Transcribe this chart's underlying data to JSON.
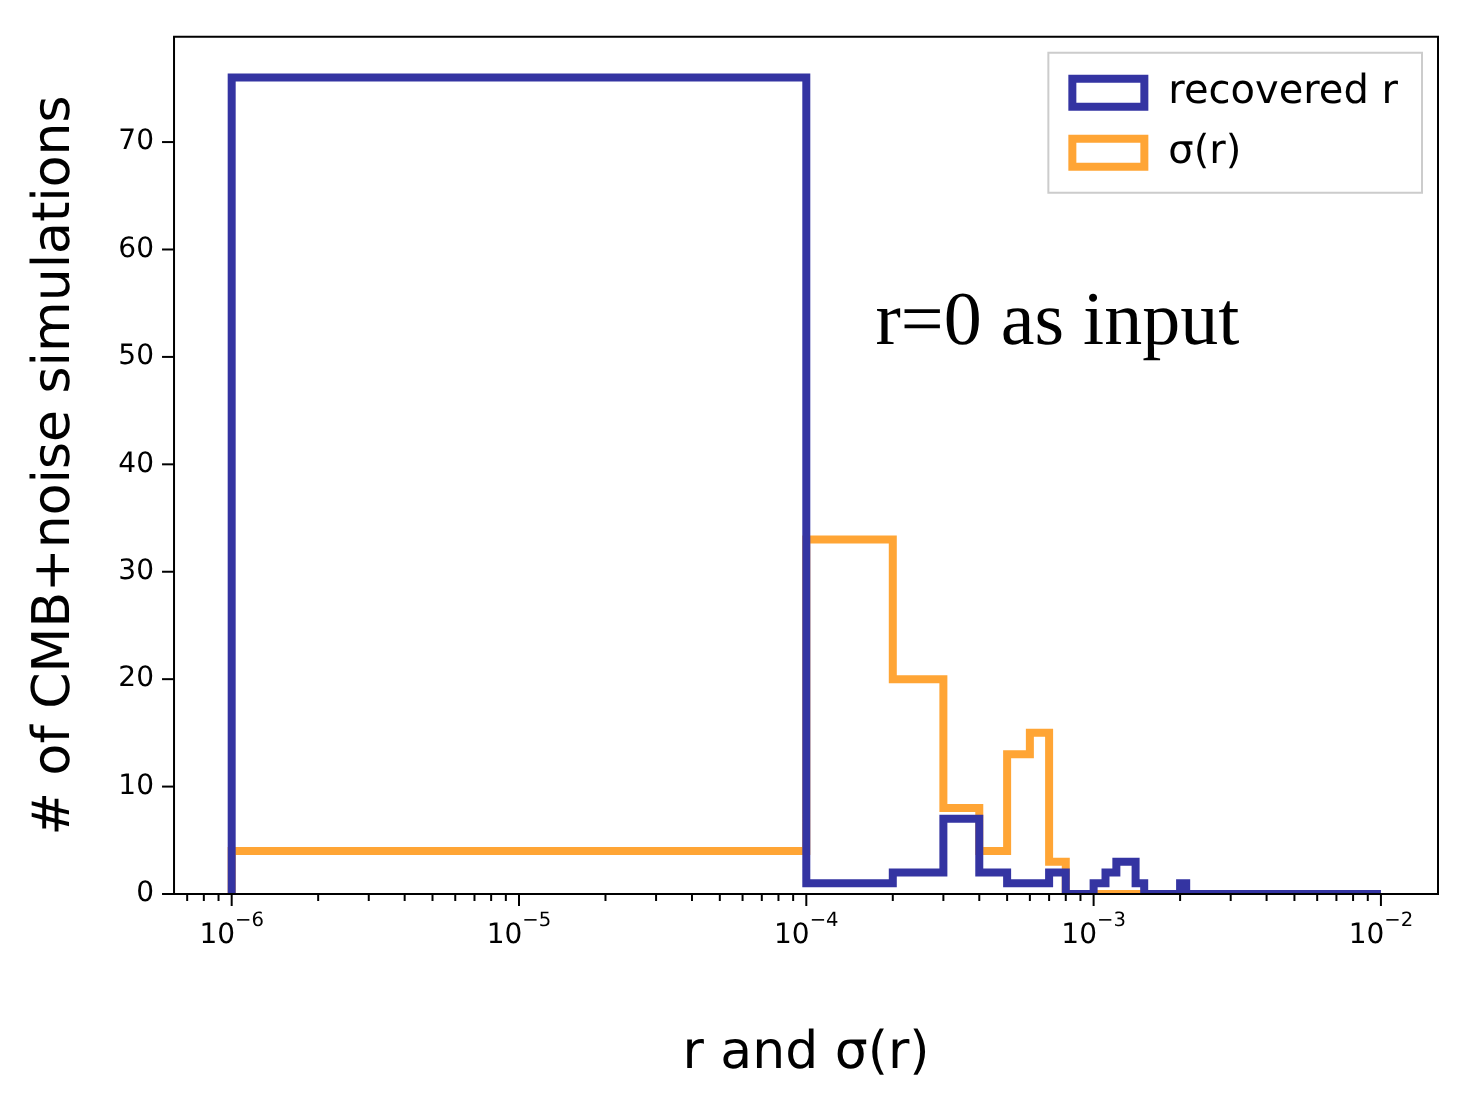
{
  "chart_data": {
    "type": "histogram",
    "xlabel": "r and σ(r)",
    "ylabel": "# of CMB+noise simulations",
    "annotations": [
      "r=0 as input"
    ],
    "log": "x",
    "legend": "top right",
    "bins": [
      1e-06,
      0.0001,
      0.0002,
      0.0003,
      0.0004,
      0.0005,
      0.0006,
      0.0007,
      0.0008,
      0.0009,
      0.001,
      0.0011,
      0.0012,
      0.0013,
      0.0014,
      0.0015,
      0.0016,
      0.0017,
      0.0018,
      0.0019,
      0.002,
      0.0021,
      0.01
    ],
    "series": [
      {
        "name": "recovered r",
        "color": "#3434a2",
        "values": [
          76,
          1,
          2,
          7,
          2,
          1,
          1,
          2,
          0,
          0,
          1,
          2,
          3,
          3,
          1,
          0,
          0,
          0,
          0,
          0,
          1,
          0
        ]
      },
      {
        "name": "σ(r)",
        "color": "#ffa535",
        "values": [
          4,
          33,
          20,
          8,
          4,
          13,
          15,
          3,
          0,
          0,
          0,
          0,
          0,
          0,
          0,
          0,
          0,
          0,
          0,
          0,
          0,
          0
        ]
      }
    ],
    "xlim": [
      6.3e-07,
      0.0158
    ],
    "ylim": [
      0,
      79.8
    ],
    "xticks": [
      {
        "value": 7e-07,
        "label": null
      },
      {
        "value": 8e-07,
        "label": null
      },
      {
        "value": 9e-07,
        "label": null
      },
      {
        "value": 1e-06,
        "label": "10$^{−6}$"
      },
      {
        "value": 2e-06,
        "label": null
      },
      {
        "value": 3e-06,
        "label": null
      },
      {
        "value": 4e-06,
        "label": null
      },
      {
        "value": 5e-06,
        "label": null
      },
      {
        "value": 6e-06,
        "label": null
      },
      {
        "value": 7e-06,
        "label": null
      },
      {
        "value": 8e-06,
        "label": null
      },
      {
        "value": 9e-06,
        "label": null
      },
      {
        "value": 1e-05,
        "label": "10$^{−5}$"
      },
      {
        "value": 2e-05,
        "label": null
      },
      {
        "value": 3e-05,
        "label": null
      },
      {
        "value": 4e-05,
        "label": null
      },
      {
        "value": 5e-05,
        "label": null
      },
      {
        "value": 6e-05,
        "label": null
      },
      {
        "value": 7e-05,
        "label": null
      },
      {
        "value": 8e-05,
        "label": null
      },
      {
        "value": 9e-05,
        "label": null
      },
      {
        "value": 0.0001,
        "label": "10$^{−4}$"
      },
      {
        "value": 0.0002,
        "label": null
      },
      {
        "value": 0.0003,
        "label": null
      },
      {
        "value": 0.0004,
        "label": null
      },
      {
        "value": 0.0005,
        "label": null
      },
      {
        "value": 0.0006,
        "label": null
      },
      {
        "value": 0.0007,
        "label": null
      },
      {
        "value": 0.0008,
        "label": null
      },
      {
        "value": 0.0009,
        "label": null
      },
      {
        "value": 0.001,
        "label": "10$^{−3}$"
      },
      {
        "value": 0.002,
        "label": null
      },
      {
        "value": 0.003,
        "label": null
      },
      {
        "value": 0.004,
        "label": null
      },
      {
        "value": 0.005,
        "label": null
      },
      {
        "value": 0.006,
        "label": null
      },
      {
        "value": 0.007,
        "label": null
      },
      {
        "value": 0.008,
        "label": null
      },
      {
        "value": 0.009,
        "label": null
      },
      {
        "value": 0.01,
        "label": "10$^{−2}$"
      }
    ],
    "yticks": [
      0,
      10,
      20,
      30,
      40,
      50,
      60,
      70
    ]
  }
}
